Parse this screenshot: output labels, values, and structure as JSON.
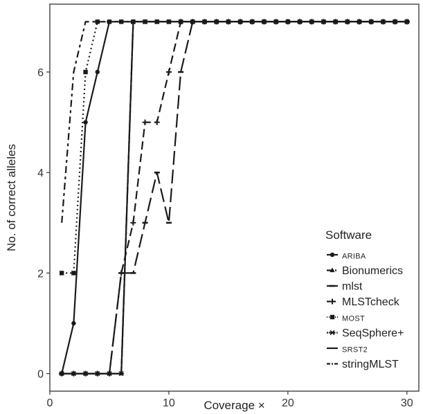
{
  "chart_data": {
    "type": "line",
    "xlabel": "Coverage ×",
    "ylabel": "No. of correct alleles",
    "xlim": [
      0,
      31
    ],
    "ylim": [
      -0.35,
      7.35
    ],
    "x_ticks": [
      0,
      10,
      20,
      30
    ],
    "y_ticks": [
      0,
      2,
      4,
      6
    ],
    "grid": false,
    "legend_position": "bottom-right",
    "legend_title": "Software",
    "x": [
      1,
      2,
      3,
      4,
      5,
      6,
      7,
      8,
      9,
      10,
      11,
      12,
      13,
      14,
      15,
      16,
      17,
      18,
      19,
      20,
      21,
      22,
      23,
      24,
      25,
      26,
      27,
      28,
      29,
      30
    ],
    "series": [
      {
        "name": "ARIBA",
        "marker": "circle",
        "dash": "",
        "label_style": "smallcaps",
        "values": [
          0,
          1,
          5,
          6,
          7,
          7,
          7,
          7,
          7,
          7,
          7,
          7,
          7,
          7,
          7,
          7,
          7,
          7,
          7,
          7,
          7,
          7,
          7,
          7,
          7,
          7,
          7,
          7,
          7,
          7
        ]
      },
      {
        "name": "Bionumerics",
        "marker": "triangle",
        "dash": "22,5,5,5",
        "label_style": "normal",
        "values": [
          0,
          0,
          0,
          0,
          0,
          0,
          7,
          7,
          7,
          7,
          7,
          7,
          7,
          7,
          7,
          7,
          7,
          7,
          7,
          7,
          7,
          7,
          7,
          7,
          7,
          7,
          7,
          7,
          7,
          7
        ]
      },
      {
        "name": "mlst",
        "marker": "dash",
        "dash": "20,7",
        "label_style": "normal",
        "values": [
          0,
          0,
          0,
          0,
          0,
          2,
          2,
          3,
          4,
          3,
          6,
          7,
          7,
          7,
          7,
          7,
          7,
          7,
          7,
          7,
          7,
          7,
          7,
          7,
          7,
          7,
          7,
          7,
          7,
          7
        ]
      },
      {
        "name": "MLSTcheck",
        "marker": "plus",
        "dash": "12,6",
        "label_style": "normal",
        "values": [
          0,
          0,
          0,
          0,
          0,
          2,
          3,
          5,
          5,
          6,
          7,
          7,
          7,
          7,
          7,
          7,
          7,
          7,
          7,
          7,
          7,
          7,
          7,
          7,
          7,
          7,
          7,
          7,
          7,
          7
        ]
      },
      {
        "name": "MOST",
        "marker": "square",
        "dash": "2,4",
        "label_style": "smallcaps",
        "values": [
          2,
          2,
          6,
          7,
          7,
          7,
          7,
          7,
          7,
          7,
          7,
          7,
          7,
          7,
          7,
          7,
          7,
          7,
          7,
          7,
          7,
          7,
          7,
          7,
          7,
          7,
          7,
          7,
          7,
          7
        ]
      },
      {
        "name": "SeqSphere+",
        "marker": "asterisk",
        "dash": "4,3,1,3",
        "label_style": "normal",
        "values": [
          0,
          0,
          0,
          0,
          0,
          0,
          7,
          7,
          7,
          7,
          7,
          7,
          7,
          7,
          7,
          7,
          7,
          7,
          7,
          7,
          7,
          7,
          7,
          7,
          7,
          7,
          7,
          7,
          7,
          7
        ]
      },
      {
        "name": "SRST2",
        "marker": "none",
        "dash": "",
        "label_style": "smallcaps",
        "values": [
          0,
          0,
          0,
          0,
          0,
          0,
          7,
          7,
          7,
          7,
          7,
          7,
          7,
          7,
          7,
          7,
          7,
          7,
          7,
          7,
          7,
          7,
          7,
          7,
          7,
          7,
          7,
          7,
          7,
          7
        ]
      },
      {
        "name": "stringMLST",
        "marker": "none",
        "dash": "10,5,4,5",
        "label_style": "normal",
        "values": [
          3,
          6,
          7,
          7,
          7,
          7,
          7,
          7,
          7,
          7,
          7,
          7,
          7,
          7,
          7,
          7,
          7,
          7,
          7,
          7,
          7,
          7,
          7,
          7,
          7,
          7,
          7,
          7,
          7,
          7
        ]
      }
    ],
    "colors": {
      "line": "#1a1a1a",
      "axis": "#333333",
      "background": "#ffffff"
    }
  }
}
